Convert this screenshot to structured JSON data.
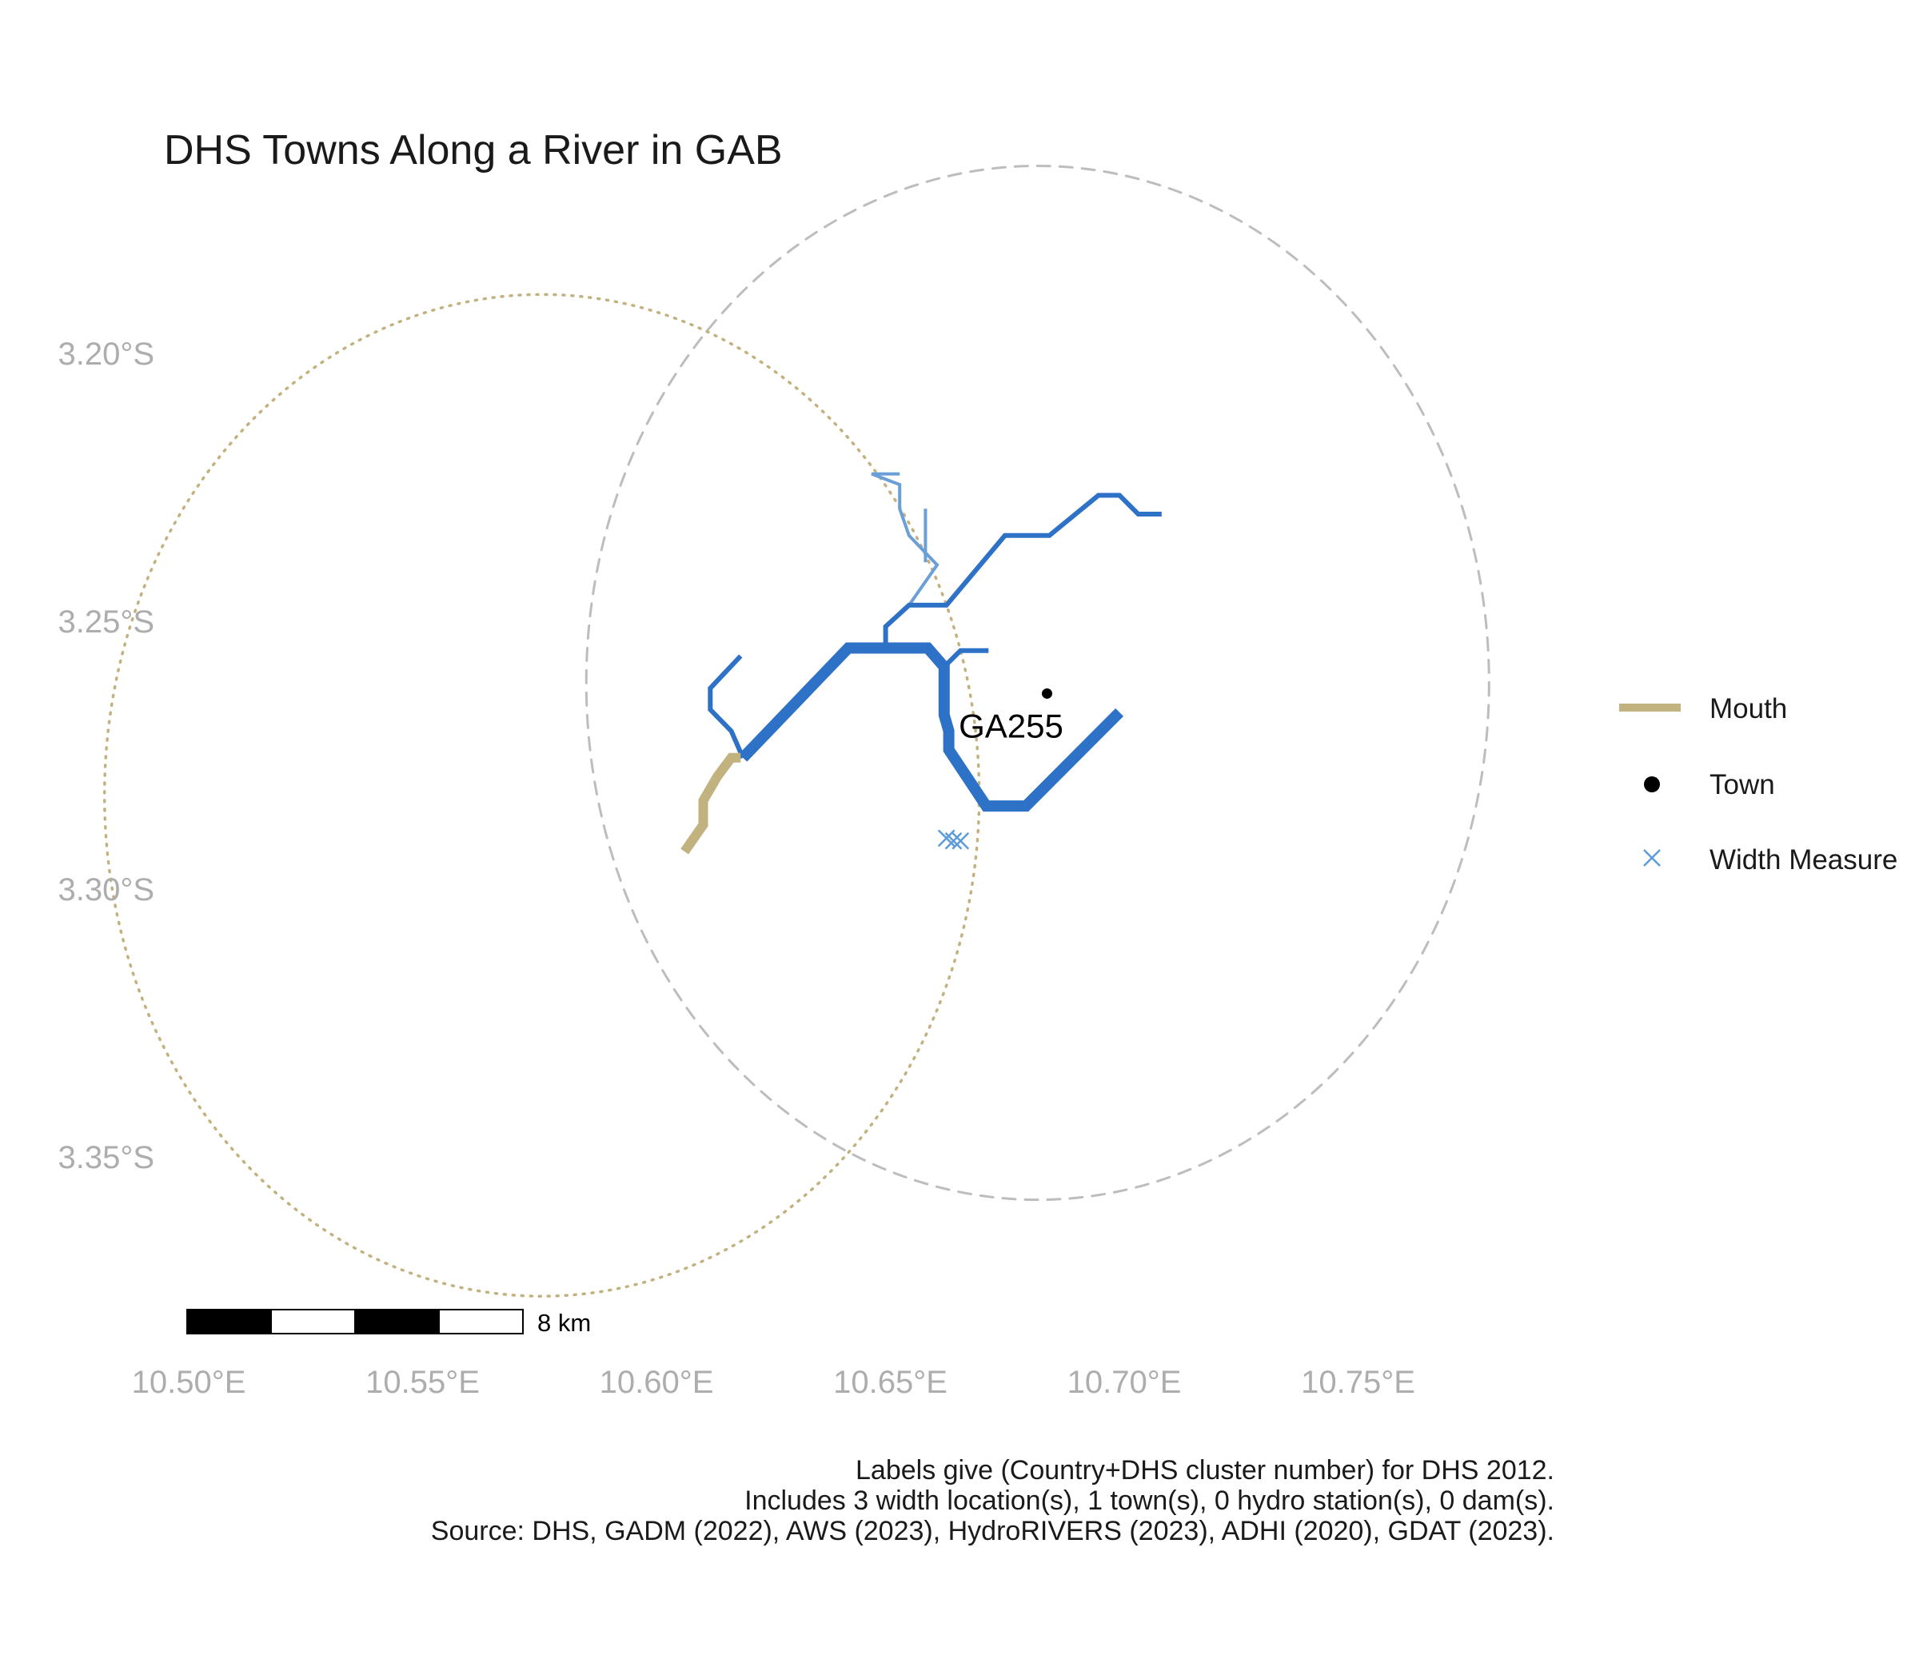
{
  "title": "DHS Towns Along a River in GAB",
  "axes": {
    "x_ticks": [
      {
        "value": 10.5,
        "label": "10.50°E"
      },
      {
        "value": 10.55,
        "label": "10.55°E"
      },
      {
        "value": 10.6,
        "label": "10.60°E"
      },
      {
        "value": 10.65,
        "label": "10.65°E"
      },
      {
        "value": 10.7,
        "label": "10.70°E"
      },
      {
        "value": 10.75,
        "label": "10.75°E"
      }
    ],
    "y_ticks": [
      {
        "value": -3.2,
        "label": "3.20°S"
      },
      {
        "value": -3.25,
        "label": "3.25°S"
      },
      {
        "value": -3.3,
        "label": "3.30°S"
      },
      {
        "value": -3.35,
        "label": "3.35°S"
      }
    ]
  },
  "legend": {
    "mouth_label": "Mouth",
    "town_label": "Town",
    "width_label": "Width Measure"
  },
  "scale_bar": {
    "label": "8 km"
  },
  "caption": {
    "line1": "Labels give (Country+DHS cluster number) for DHS 2012.",
    "line2": "Includes 3 width location(s), 1 town(s), 0 hydro station(s), 0 dam(s).",
    "line3": "Source: DHS, GADM (2022), AWS (2023), HydroRIVERS (2023), ADHI (2020), GDAT (2023)."
  },
  "colors": {
    "river": "#2e72c7",
    "tributary": "#6b9fd8",
    "mouth": "#c2b280",
    "town": "#000000",
    "width_marker": "#5b9bdc",
    "dashed_circle": "#bdbdbd",
    "dotted_circle": "#c2b280"
  },
  "map_data": {
    "town": {
      "name": "GA255",
      "lon": 10.6835,
      "lat": -3.2635
    },
    "width_measures": [
      {
        "lon": 10.662,
        "lat": -3.2905
      },
      {
        "lon": 10.6635,
        "lat": -3.291
      },
      {
        "lon": 10.665,
        "lat": -3.291
      }
    ],
    "buffer_circles": [
      {
        "style": "dashed",
        "center_lon": 10.6815,
        "center_lat": -3.2615,
        "radius_deg": 0.0965
      },
      {
        "style": "dotted",
        "center_lon": 10.5755,
        "center_lat": -3.2825,
        "radius_deg": 0.0935
      }
    ],
    "mouth_segment": [
      [
        10.606,
        -3.293
      ],
      [
        10.61,
        -3.288
      ],
      [
        10.61,
        -3.2835
      ],
      [
        10.613,
        -3.279
      ],
      [
        10.616,
        -3.2755
      ],
      [
        10.618,
        -3.2755
      ]
    ],
    "river_segments": [
      {
        "width": 3,
        "coords": [
          [
            10.6185,
            -3.2755
          ],
          [
            10.641,
            -3.255
          ],
          [
            10.658,
            -3.255
          ],
          [
            10.6615,
            -3.2585
          ],
          [
            10.6615,
            -3.2675
          ],
          [
            10.6625,
            -3.2705
          ],
          [
            10.6625,
            -3.274
          ],
          [
            10.6705,
            -3.2845
          ],
          [
            10.679,
            -3.2845
          ],
          [
            10.699,
            -3.267
          ]
        ]
      },
      {
        "width": 2,
        "coords": [
          [
            10.6185,
            -3.2755
          ],
          [
            10.616,
            -3.2705
          ],
          [
            10.6115,
            -3.2665
          ],
          [
            10.6115,
            -3.2625
          ],
          [
            10.618,
            -3.2565
          ]
        ]
      },
      {
        "width": 2,
        "coords": [
          [
            10.6615,
            -3.2585
          ],
          [
            10.665,
            -3.2555
          ],
          [
            10.671,
            -3.2555
          ]
        ]
      },
      {
        "width": 2,
        "coords": [
          [
            10.649,
            -3.255
          ],
          [
            10.649,
            -3.251
          ],
          [
            10.654,
            -3.247
          ],
          [
            10.662,
            -3.247
          ],
          [
            10.6745,
            -3.234
          ],
          [
            10.684,
            -3.234
          ],
          [
            10.6945,
            -3.2265
          ],
          [
            10.699,
            -3.2265
          ],
          [
            10.703,
            -3.23
          ],
          [
            10.708,
            -3.23
          ]
        ]
      }
    ],
    "tributary_segments": [
      [
        [
          10.654,
          -3.247
        ],
        [
          10.66,
          -3.2395
        ],
        [
          10.654,
          -3.234
        ],
        [
          10.652,
          -3.229
        ],
        [
          10.652,
          -3.2245
        ],
        [
          10.646,
          -3.2225
        ],
        [
          10.652,
          -3.2225
        ]
      ],
      [
        [
          10.6575,
          -3.229
        ],
        [
          10.6575,
          -3.239
        ]
      ]
    ]
  }
}
